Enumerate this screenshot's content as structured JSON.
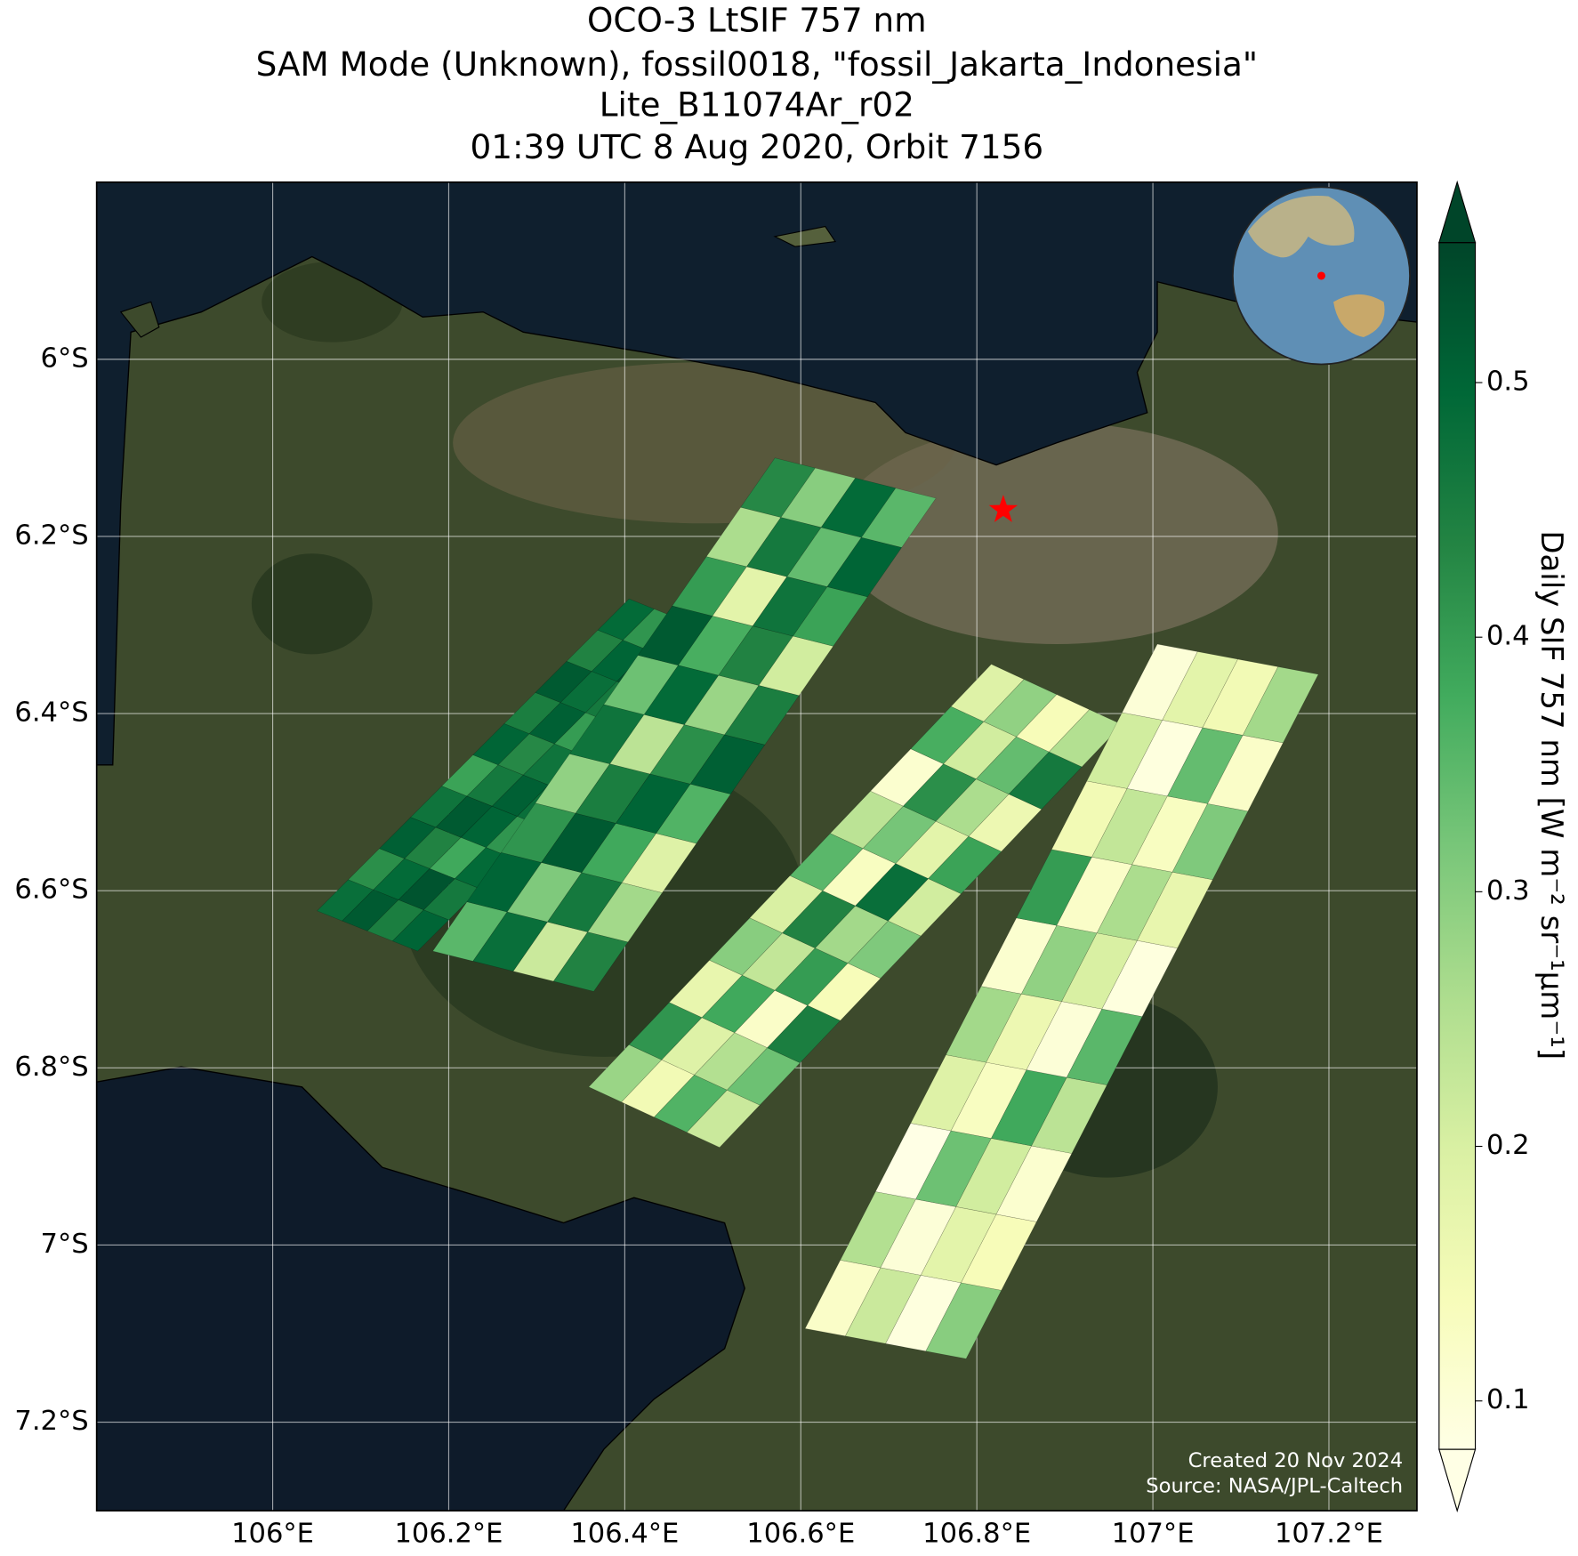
{
  "chart_data": {
    "type": "map",
    "title": [
      "OCO-3 LtSIF 757 nm",
      "SAM Mode (Unknown), fossil0018, \"fossil_Jakarta_Indonesia\"",
      "Lite_B11074Ar_r02",
      "01:39 UTC 8 Aug 2020, Orbit 7156"
    ],
    "xlim": [
      105.8,
      107.3
    ],
    "ylim": [
      -7.3,
      -5.8
    ],
    "xticks": [
      {
        "value": 106,
        "label": "106°E"
      },
      {
        "value": 106.2,
        "label": "106.2°E"
      },
      {
        "value": 106.4,
        "label": "106.4°E"
      },
      {
        "value": 106.6,
        "label": "106.6°E"
      },
      {
        "value": 106.8,
        "label": "106.8°E"
      },
      {
        "value": 107,
        "label": "107°E"
      },
      {
        "value": 107.2,
        "label": "107.2°E"
      }
    ],
    "yticks": [
      {
        "value": -6,
        "label": "6°S"
      },
      {
        "value": -6.2,
        "label": "6.2°S"
      },
      {
        "value": -6.4,
        "label": "6.4°S"
      },
      {
        "value": -6.6,
        "label": "6.6°S"
      },
      {
        "value": -6.8,
        "label": "6.8°S"
      },
      {
        "value": -7,
        "label": "7°S"
      },
      {
        "value": -7.2,
        "label": "7.2°S"
      }
    ],
    "grid": true,
    "target": {
      "lon": 106.83,
      "lat": -6.17,
      "color": "#ff0000"
    },
    "colormap": "YlGn",
    "colorbar": {
      "label": "Daily SIF 757 nm [W m⁻² sr⁻¹μm⁻¹]",
      "lim": [
        0.081,
        0.555
      ],
      "ticks": [
        0.1,
        0.2,
        0.3,
        0.4,
        0.5
      ],
      "extend": "both"
    },
    "swaths": [
      {
        "values": [
          [
            0.48,
            0.52,
            0.45,
            0.5
          ],
          [
            0.42,
            0.49,
            0.53,
            0.46
          ],
          [
            0.51,
            0.44,
            0.38,
            0.49
          ],
          [
            0.47,
            0.52,
            0.5,
            0.41
          ],
          [
            0.39,
            0.46,
            0.51,
            0.48
          ],
          [
            0.5,
            0.43,
            0.47,
            0.53
          ],
          [
            0.45,
            0.51,
            0.4,
            0.49
          ],
          [
            0.52,
            0.48,
            0.46,
            0.37
          ],
          [
            0.44,
            0.5,
            0.53,
            0.47
          ],
          [
            0.49,
            0.41,
            0.48,
            0.51
          ]
        ]
      },
      {
        "values": [
          [
            0.35,
            0.48,
            0.22,
            0.44
          ],
          [
            0.5,
            0.31,
            0.46,
            0.27
          ],
          [
            0.41,
            0.52,
            0.38,
            0.19
          ],
          [
            0.29,
            0.45,
            0.5,
            0.36
          ],
          [
            0.47,
            0.24,
            0.42,
            0.51
          ],
          [
            0.33,
            0.49,
            0.28,
            0.45
          ],
          [
            0.52,
            0.37,
            0.44,
            0.21
          ],
          [
            0.4,
            0.18,
            0.47,
            0.39
          ],
          [
            0.26,
            0.46,
            0.34,
            0.5
          ],
          [
            0.43,
            0.3,
            0.49,
            0.35
          ]
        ]
      },
      {
        "values": [
          [
            0.28,
            0.15,
            0.36,
            0.22
          ],
          [
            0.41,
            0.19,
            0.25,
            0.33
          ],
          [
            0.17,
            0.38,
            0.12,
            0.45
          ],
          [
            0.3,
            0.23,
            0.4,
            0.14
          ],
          [
            0.2,
            0.44,
            0.27,
            0.31
          ],
          [
            0.35,
            0.13,
            0.48,
            0.21
          ],
          [
            0.24,
            0.32,
            0.18,
            0.39
          ],
          [
            0.11,
            0.42,
            0.26,
            0.16
          ],
          [
            0.37,
            0.21,
            0.34,
            0.46
          ],
          [
            0.19,
            0.29,
            0.14,
            0.25
          ]
        ]
      },
      {
        "values": [
          [
            0.12,
            0.22,
            0.09,
            0.3
          ],
          [
            0.25,
            0.1,
            0.18,
            0.14
          ],
          [
            0.08,
            0.33,
            0.21,
            0.11
          ],
          [
            0.19,
            0.13,
            0.38,
            0.24
          ],
          [
            0.27,
            0.16,
            0.1,
            0.35
          ],
          [
            0.11,
            0.29,
            0.2,
            0.09
          ],
          [
            0.4,
            0.12,
            0.26,
            0.17
          ],
          [
            0.15,
            0.23,
            0.13,
            0.31
          ],
          [
            0.21,
            0.09,
            0.34,
            0.12
          ],
          [
            0.1,
            0.18,
            0.15,
            0.27
          ]
        ]
      }
    ],
    "credits": [
      "Created 20 Nov 2024",
      "Source: NASA/JPL-Caltech"
    ]
  }
}
